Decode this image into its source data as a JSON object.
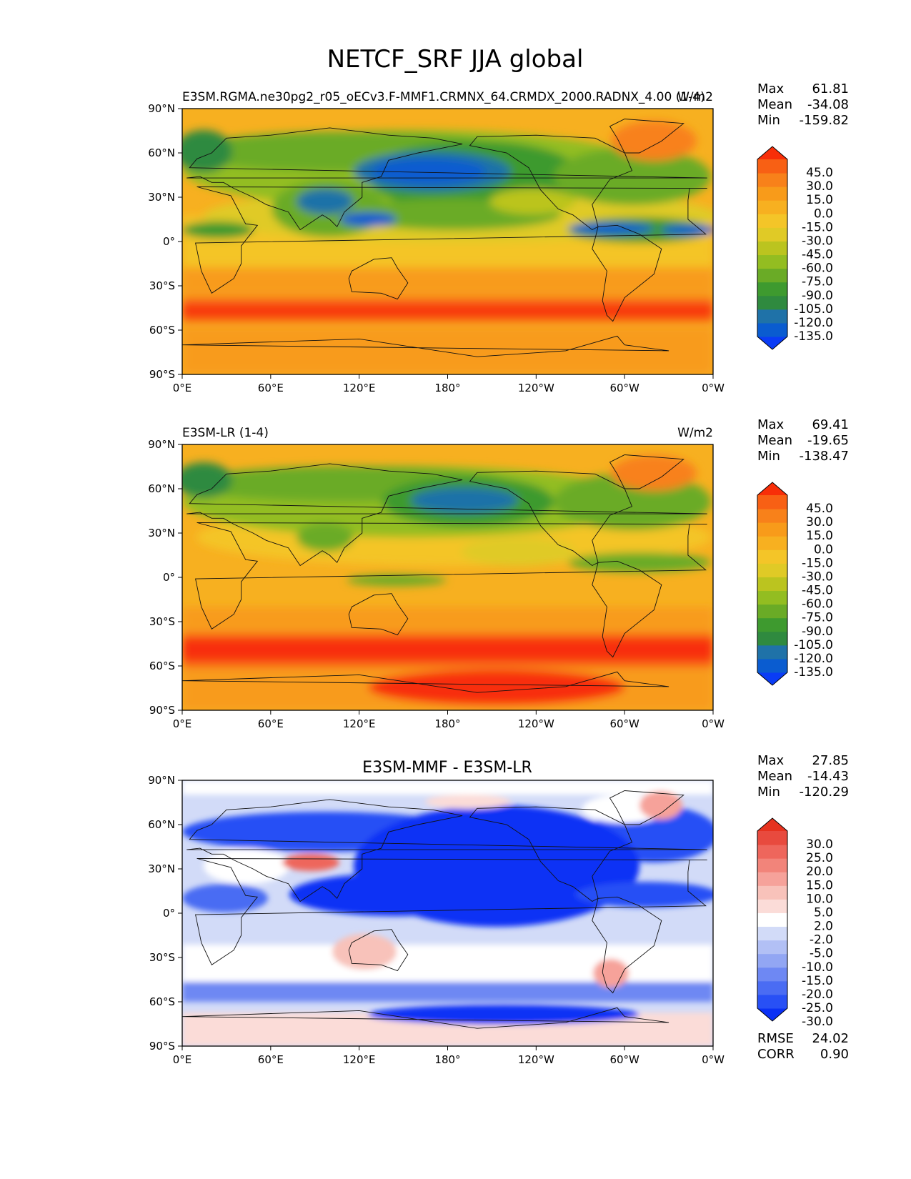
{
  "title": "NETCF_SRF JJA global",
  "colors": {
    "main_scale": [
      "#0a3cf5",
      "#0a5cd0",
      "#1f72a8",
      "#2f8a3f",
      "#3e9a2f",
      "#6aab26",
      "#93bd21",
      "#bbc41f",
      "#e0ca26",
      "#f4c528",
      "#f7b020",
      "#f89b1a",
      "#f8811a",
      "#f86014",
      "#f82e08"
    ],
    "diff_scale": [
      "#0a30f5",
      "#2850f5",
      "#4a6cf3",
      "#6e88f3",
      "#92a6f3",
      "#b2c0f5",
      "#d2dbf8",
      "#ffffff",
      "#fbdcd8",
      "#f8c2ba",
      "#f6a29a",
      "#f2847a",
      "#ee665c",
      "#e84a3e",
      "#e6321f"
    ]
  },
  "chart_data": [
    {
      "type": "heatmap",
      "name": "E3SM.RGMA.ne30pg2_r05_oECv3.F-MMF1.CRMNX_64.CRMDX_2000.RADNX_4.00 (1-4)",
      "units": "W/m2",
      "stats": {
        "max_label": "Max",
        "max": "61.81",
        "mean_label": "Mean",
        "mean": "-34.08",
        "min_label": "Min",
        "min": "-159.82"
      },
      "colorbar_ticks": [
        "45.0",
        "30.0",
        "15.0",
        "0.0",
        "-15.0",
        "-30.0",
        "-45.0",
        "-60.0",
        "-75.0",
        "-90.0",
        "-105.0",
        "-120.0",
        "-135.0"
      ],
      "x_ticks": [
        "0°E",
        "60°E",
        "120°E",
        "180°",
        "120°W",
        "60°W",
        "0°W"
      ],
      "y_ticks": [
        "90°N",
        "60°N",
        "30°N",
        "0°",
        "30°S",
        "60°S",
        "90°S"
      ],
      "xlim": [
        0,
        360
      ],
      "ylim": [
        -90,
        90
      ]
    },
    {
      "type": "heatmap",
      "name": "E3SM-LR (1-4)",
      "units": "W/m2",
      "stats": {
        "max_label": "Max",
        "max": "69.41",
        "mean_label": "Mean",
        "mean": "-19.65",
        "min_label": "Min",
        "min": "-138.47"
      },
      "colorbar_ticks": [
        "45.0",
        "30.0",
        "15.0",
        "0.0",
        "-15.0",
        "-30.0",
        "-45.0",
        "-60.0",
        "-75.0",
        "-90.0",
        "-105.0",
        "-120.0",
        "-135.0"
      ],
      "x_ticks": [
        "0°E",
        "60°E",
        "120°E",
        "180°",
        "120°W",
        "60°W",
        "0°W"
      ],
      "y_ticks": [
        "90°N",
        "60°N",
        "30°N",
        "0°",
        "30°S",
        "60°S",
        "90°S"
      ],
      "xlim": [
        0,
        360
      ],
      "ylim": [
        -90,
        90
      ]
    },
    {
      "type": "heatmap",
      "name": "E3SM-MMF - E3SM-LR",
      "stats": {
        "max_label": "Max",
        "max": "27.85",
        "mean_label": "Mean",
        "mean": "-14.43",
        "min_label": "Min",
        "min": "-120.29"
      },
      "colorbar_ticks": [
        "30.0",
        "25.0",
        "20.0",
        "15.0",
        "10.0",
        "5.0",
        "2.0",
        "-2.0",
        "-5.0",
        "-10.0",
        "-15.0",
        "-20.0",
        "-25.0",
        "-30.0"
      ],
      "metrics": {
        "rmse_label": "RMSE",
        "rmse": "24.02",
        "corr_label": "CORR",
        "corr": "0.90"
      },
      "x_ticks": [
        "0°E",
        "60°E",
        "120°E",
        "180°",
        "120°W",
        "60°W",
        "0°W"
      ],
      "y_ticks": [
        "90°N",
        "60°N",
        "30°N",
        "0°",
        "30°S",
        "60°S",
        "90°S"
      ],
      "xlim": [
        0,
        360
      ],
      "ylim": [
        -90,
        90
      ]
    }
  ]
}
